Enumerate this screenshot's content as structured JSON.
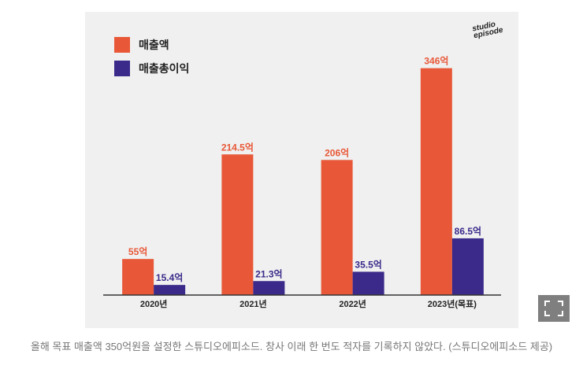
{
  "brand": {
    "line1": "studio",
    "line2": "episode"
  },
  "caption": "올해 목표 매출액 350억원을 설정한 스튜디오에피소드. 창사 이래 한 번도 적자를 기록하지 않았다. (스튜디오에피소드 제공)",
  "colors": {
    "revenue": "#e85838",
    "gross_profit": "#3b2a8a",
    "background": "#f0f0f0",
    "button": "#7f7f7f"
  },
  "icons": {
    "expand": "expand-icon"
  },
  "chart_data": {
    "type": "bar",
    "categories": [
      "2020년",
      "2021년",
      "2022년",
      "2023년(목표)"
    ],
    "series": [
      {
        "name": "매출액",
        "values": [
          55,
          214.5,
          206,
          346
        ],
        "labels": [
          "55억",
          "214.5억",
          "206억",
          "346억"
        ],
        "color": "#e85838"
      },
      {
        "name": "매출총이익",
        "values": [
          15.4,
          21.3,
          35.5,
          86.5
        ],
        "labels": [
          "15.4억",
          "21.3억",
          "35.5억",
          "86.5억"
        ],
        "color": "#3b2a8a"
      }
    ],
    "ylim": [
      0,
      360
    ],
    "grid": false,
    "legend": "top-left",
    "xlabel": "",
    "ylabel": ""
  }
}
